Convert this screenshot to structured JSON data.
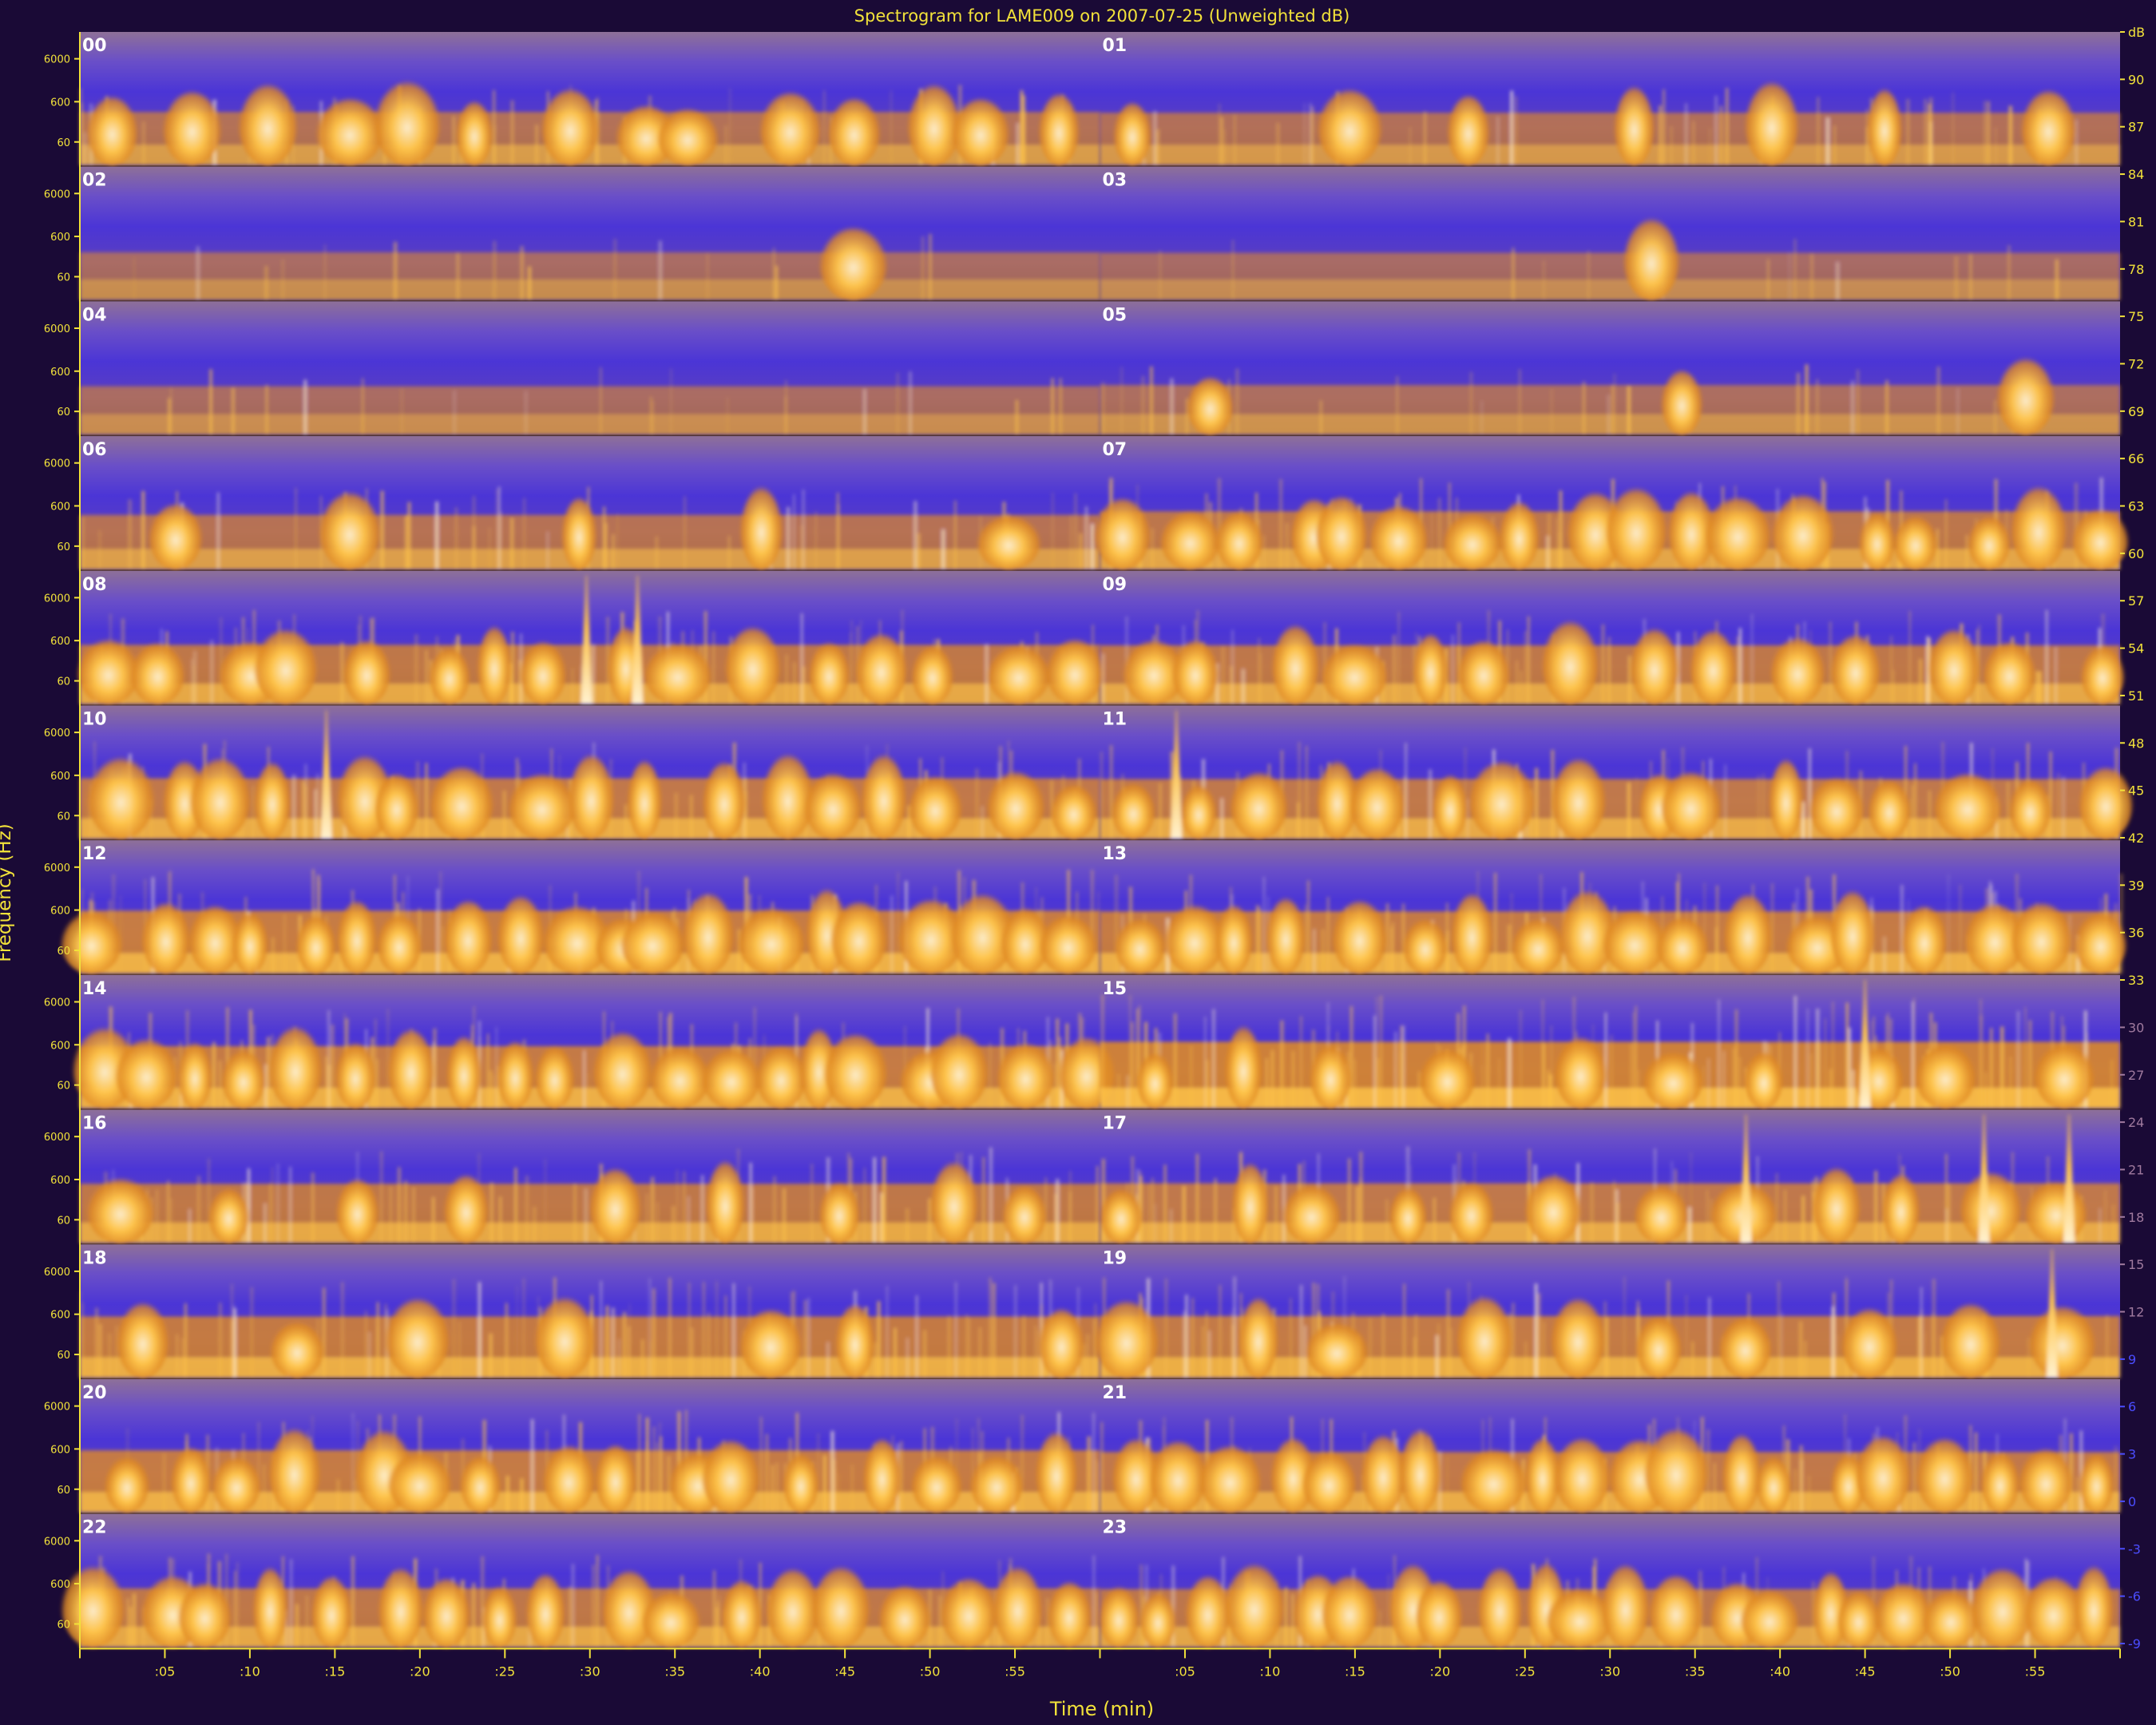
{
  "colors": {
    "background": "#1a0a36",
    "axis_text": "#f2e23a",
    "quiet": "#4b35d6",
    "mid": "#e08a24",
    "loud": "#ffc54a",
    "hot": "#fff1d0",
    "floor": "#8e7098"
  },
  "chart_data": {
    "type": "heatmap",
    "title": "Spectrogram for LAME009 on 2007-07-25 (Unweighted dB)",
    "xlabel": "Time (min)",
    "ylabel": "Frequency (Hz)",
    "y_scale": "log",
    "y_ticks": [
      "6000",
      "600",
      "60"
    ],
    "x_ticks_per_hour": [
      ":05",
      ":10",
      ":15",
      ":20",
      ":25",
      ":30",
      ":35",
      ":40",
      ":45",
      ":50",
      ":55"
    ],
    "rows": [
      {
        "hours": [
          "00",
          "01"
        ]
      },
      {
        "hours": [
          "02",
          "03"
        ]
      },
      {
        "hours": [
          "04",
          "05"
        ]
      },
      {
        "hours": [
          "06",
          "07"
        ]
      },
      {
        "hours": [
          "08",
          "09"
        ]
      },
      {
        "hours": [
          "10",
          "11"
        ]
      },
      {
        "hours": [
          "12",
          "13"
        ]
      },
      {
        "hours": [
          "14",
          "15"
        ]
      },
      {
        "hours": [
          "16",
          "17"
        ]
      },
      {
        "hours": [
          "18",
          "19"
        ]
      },
      {
        "hours": [
          "20",
          "21"
        ]
      },
      {
        "hours": [
          "22",
          "23"
        ]
      }
    ],
    "colorbar": {
      "unit": "dB",
      "labels": [
        "dB",
        "90",
        "87",
        "84",
        "81",
        "78",
        "75",
        "72",
        "69",
        "66",
        "63",
        "60",
        "57",
        "54",
        "51",
        "48",
        "45",
        "42",
        "39",
        "36",
        "33",
        "30",
        "27",
        "24",
        "21",
        "18",
        "15",
        "12",
        "9",
        "6",
        "3",
        "0",
        "-3",
        "-6",
        "-9"
      ]
    },
    "activity_level_by_hour": [
      0.35,
      0.32,
      0.12,
      0.1,
      0.15,
      0.2,
      0.4,
      0.55,
      0.6,
      0.58,
      0.65,
      0.62,
      0.75,
      0.72,
      0.72,
      0.9,
      0.6,
      0.62,
      0.68,
      0.7,
      0.72,
      0.65,
      0.58,
      0.55
    ],
    "burst_count_by_hour": [
      14,
      7,
      1,
      1,
      0,
      3,
      5,
      18,
      16,
      14,
      17,
      16,
      20,
      18,
      20,
      10,
      9,
      12,
      7,
      10,
      16,
      20,
      18,
      22
    ],
    "spikes_min": {
      "08": [
        29.8,
        32.8
      ],
      "10": [
        14.5
      ],
      "11": [
        4.5
      ],
      "15": [
        45
      ],
      "17": [
        38,
        52,
        57
      ],
      "19": [
        56
      ]
    }
  }
}
